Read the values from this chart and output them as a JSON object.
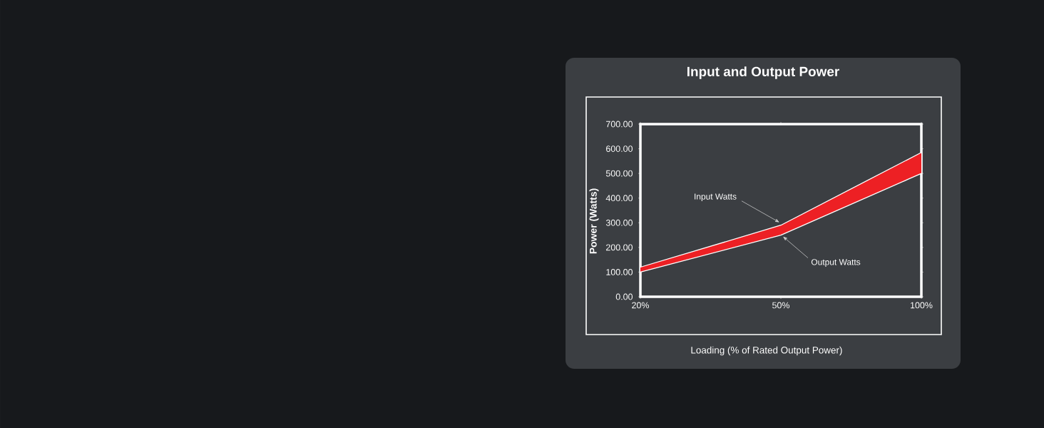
{
  "chart_data": {
    "type": "line",
    "title": "Input and Output Power",
    "xlabel": "Loading (% of Rated Output Power)",
    "ylabel": "Power (Watts)",
    "categories": [
      "20%",
      "50%",
      "100%"
    ],
    "series": [
      {
        "color": "#ffffff",
        "values": [
          120,
          290,
          585
        ],
        "lower": [
          100,
          250,
          500
        ],
        "upper": [
          120,
          290,
          585
        ]
      },
      {
        "color": "#ffffff",
        "values": [
          100,
          250,
          500
        ]
      }
    ],
    "ylim": [
      0,
      700
    ],
    "yticks": [
      {
        "value": 0,
        "label": "0.00"
      },
      {
        "value": 100,
        "label": "100.00"
      },
      {
        "value": 200,
        "label": "200.00"
      },
      {
        "value": 300,
        "label": "300.00"
      },
      {
        "value": 400,
        "label": "400.00"
      },
      {
        "value": 500,
        "label": "500.00"
      },
      {
        "value": 600,
        "label": "600.00"
      },
      {
        "value": 700,
        "label": "700.00"
      }
    ],
    "annotations": [
      {
        "text": "Input Watts",
        "x": "50%",
        "y": 290
      },
      {
        "text": "Output Watts",
        "x": "50%",
        "y": 250
      }
    ]
  }
}
